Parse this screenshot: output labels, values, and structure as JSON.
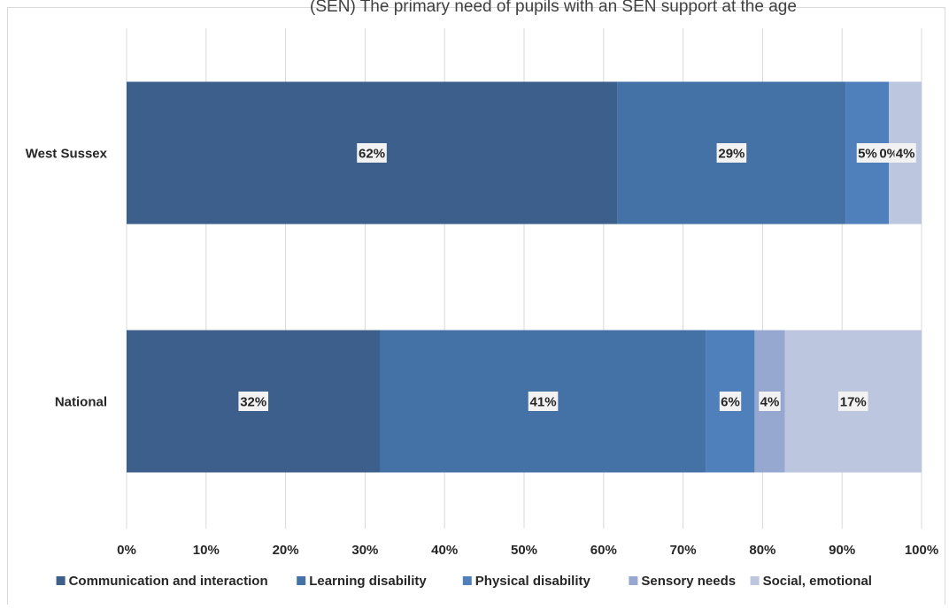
{
  "page": {
    "clipped_top_text": "(SEN) The primary need of pupils with an SEN support at the age"
  },
  "chart_data": {
    "type": "bar",
    "orientation": "horizontal",
    "stacking": "percent",
    "categories": [
      "West Sussex",
      "National"
    ],
    "series": [
      {
        "name": "Communication and interaction",
        "color": "#3c5f8c",
        "values": [
          61.7,
          31.9
        ],
        "labels": [
          "62%",
          "32%"
        ]
      },
      {
        "name": "Learning disability",
        "color": "#4572a6",
        "values": [
          28.8,
          41.0
        ],
        "labels": [
          "29%",
          "41%"
        ]
      },
      {
        "name": "Physical disability",
        "color": "#4f80bc",
        "values": [
          5.4,
          6.1
        ],
        "labels": [
          "5%",
          "6%"
        ]
      },
      {
        "name": "Sensory needs",
        "color": "#96a8d0",
        "values": [
          0.0,
          3.8
        ],
        "labels": [
          "0%",
          "4%"
        ]
      },
      {
        "name": "Social, emotional",
        "color": "#bcc7df",
        "values": [
          4.1,
          17.2
        ],
        "labels": [
          "4%",
          "17%"
        ]
      }
    ],
    "xlim": [
      0,
      100
    ],
    "x_ticks": [
      "0%",
      "10%",
      "20%",
      "30%",
      "40%",
      "50%",
      "60%",
      "70%",
      "80%",
      "90%",
      "100%"
    ],
    "grid": "vertical",
    "legend_position": "bottom",
    "xlabel": "",
    "ylabel": ""
  }
}
